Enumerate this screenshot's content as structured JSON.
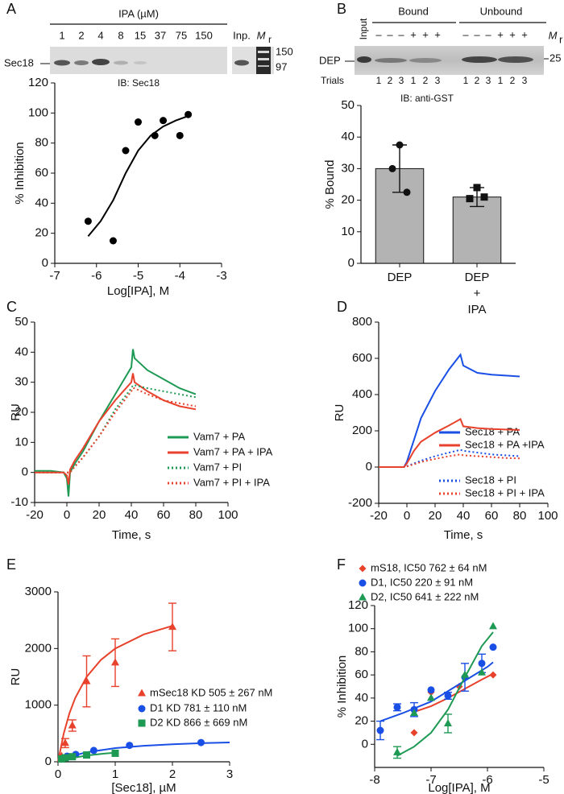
{
  "panel_labels": [
    "A",
    "B",
    "C",
    "D",
    "E",
    "F"
  ],
  "blot_a": {
    "header": "IPA (µM)",
    "lanes": [
      "1",
      "2",
      "4",
      "8",
      "15",
      "37",
      "75",
      "150",
      "Inp."
    ],
    "marker": {
      "main": "M",
      "sub": "r"
    },
    "markers": [
      "150",
      "97"
    ],
    "protein": "Sec18",
    "antibody": "IB: Sec18"
  },
  "blot_b": {
    "input": "Input",
    "groups": [
      "Bound",
      "Unbound"
    ],
    "signs": [
      "–",
      "–",
      "–",
      "+",
      "+",
      "+",
      "–",
      "–",
      "–",
      "+",
      "+",
      "+"
    ],
    "marker": {
      "main": "M",
      "sub": "r"
    },
    "marker_value": "25",
    "protein": "DEP",
    "trials_label": "Trials",
    "trials": [
      "1",
      "2",
      "3",
      "1",
      "2",
      "3",
      "1",
      "2",
      "3",
      "1",
      "2",
      "3"
    ],
    "antibody": "IB: anti-GST"
  },
  "chart_data": [
    {
      "type": "scatter",
      "xlabel": "Log[IPA], M",
      "ylabel": "% Inhibition",
      "xlim": [
        -7,
        -3
      ],
      "xticks": [
        -7,
        -6,
        -5,
        -4,
        -3
      ],
      "ylim": [
        0,
        120
      ],
      "yticks": [
        0,
        20,
        40,
        60,
        80,
        100,
        120
      ],
      "series": [
        {
          "color": "#000000",
          "marker": "circle",
          "x": [
            -6.2,
            -5.6,
            -5.3,
            -5.0,
            -4.6,
            -4.4,
            -4.0,
            -3.8
          ],
          "values": [
            28,
            15,
            75,
            94,
            85,
            95,
            85,
            99
          ],
          "fit": {
            "x": [
              -6.2,
              -5.9,
              -5.6,
              -5.3,
              -5.0,
              -4.7,
              -4.4,
              -4.1,
              -3.8
            ],
            "values": [
              18,
              28,
              42,
              60,
              75,
              85,
              91,
              95,
              98
            ]
          }
        }
      ]
    },
    {
      "type": "bar",
      "ylabel": "% Bound",
      "categories": [
        "DEP",
        "DEP\n+\nIPA"
      ],
      "values": [
        30,
        21
      ],
      "errors": [
        7.5,
        3
      ],
      "color": "#b3b3b3",
      "points": [
        [
          37.5,
          30,
          22.5
        ],
        [
          24,
          20.5,
          21
        ]
      ],
      "point_markers": [
        "circle",
        "square"
      ],
      "ylim": [
        0,
        50
      ],
      "yticks": [
        0,
        10,
        20,
        30,
        40,
        50
      ]
    },
    {
      "type": "line",
      "xlabel": "Time, s",
      "ylabel": "RU",
      "xlim": [
        -20,
        100
      ],
      "xticks": [
        -20,
        0,
        20,
        40,
        60,
        80,
        100
      ],
      "ylim": [
        -10,
        50
      ],
      "yticks": [
        -10,
        0,
        10,
        20,
        30,
        40,
        50
      ],
      "x": [
        -20,
        -10,
        -2,
        0,
        1,
        2,
        5,
        10,
        20,
        30,
        40,
        41,
        42,
        50,
        60,
        70,
        80
      ],
      "series": [
        {
          "name": "Vam7 + PA",
          "color": "#1f9a55",
          "dash": "solid",
          "values": [
            0.5,
            0.5,
            0,
            -2,
            -8,
            0,
            3,
            7,
            17,
            26,
            35,
            41,
            38,
            34,
            31,
            28,
            26
          ]
        },
        {
          "name": "Vam7 + PA + IPA",
          "color": "#e8412c",
          "dash": "solid",
          "values": [
            0,
            0,
            0,
            -1,
            -4,
            1,
            4,
            8,
            17,
            24,
            30,
            33,
            30,
            27,
            24,
            22,
            21
          ]
        },
        {
          "name": "Vam7 + PI",
          "color": "#1f9a55",
          "dash": "dotted",
          "values": [
            0,
            0,
            0,
            0,
            0,
            0,
            2,
            5,
            12,
            21,
            28,
            29,
            29,
            28,
            27,
            26,
            25
          ]
        },
        {
          "name": "Vam7 + PI + IPA",
          "color": "#e8412c",
          "dash": "dotted",
          "values": [
            0,
            0,
            0,
            0,
            0,
            0,
            2,
            5,
            12,
            20,
            27,
            28,
            28,
            26,
            24,
            23,
            22
          ]
        }
      ]
    },
    {
      "type": "line",
      "xlabel": "Time, s",
      "ylabel": "RU",
      "xlim": [
        -20,
        100
      ],
      "xticks": [
        -20,
        0,
        20,
        40,
        60,
        80,
        100
      ],
      "ylim": [
        -200,
        800
      ],
      "yticks": [
        -200,
        0,
        200,
        400,
        600,
        800
      ],
      "x": [
        -20,
        -10,
        -2,
        0,
        5,
        10,
        20,
        30,
        38,
        40,
        50,
        60,
        70,
        80
      ],
      "series": [
        {
          "name": "Sec18 + PA",
          "color": "#1a4fe6",
          "dash": "solid",
          "values": [
            0,
            0,
            0,
            30,
            150,
            270,
            420,
            540,
            620,
            560,
            520,
            510,
            505,
            500
          ]
        },
        {
          "name": "Sec18 + PA +IPA",
          "color": "#e8412c",
          "dash": "solid",
          "values": [
            0,
            0,
            0,
            20,
            90,
            140,
            190,
            230,
            265,
            225,
            215,
            210,
            207,
            205
          ]
        },
        {
          "name": "Sec18 + PI",
          "color": "#1a4fe6",
          "dash": "dotted",
          "values": [
            0,
            0,
            0,
            5,
            20,
            35,
            60,
            80,
            95,
            90,
            80,
            70,
            65,
            60
          ]
        },
        {
          "name": "Sec18 + PI + IPA",
          "color": "#e8412c",
          "dash": "dotted",
          "values": [
            0,
            0,
            0,
            3,
            15,
            28,
            45,
            60,
            70,
            65,
            60,
            55,
            50,
            48
          ]
        }
      ]
    },
    {
      "type": "scatter",
      "xlabel": "[Sec18], µM",
      "ylabel": "RU",
      "xlim": [
        0,
        3
      ],
      "xticks": [
        0,
        1,
        2,
        3
      ],
      "ylim": [
        0,
        3000
      ],
      "yticks": [
        0,
        1000,
        2000,
        3000
      ],
      "series": [
        {
          "name": "mSec18 KD 505 ± 267 nM",
          "color": "#e8412c",
          "marker": "triangle",
          "x": [
            0.0625,
            0.125,
            0.25,
            0.5,
            1,
            2
          ],
          "values": [
            100,
            330,
            640,
            1420,
            1750,
            2380
          ],
          "errors": [
            null,
            80,
            100,
            450,
            420,
            420
          ],
          "fit": {
            "x": [
              0,
              0.1,
              0.2,
              0.3,
              0.5,
              0.75,
              1,
              1.5,
              2
            ],
            "values": [
              0,
              500,
              857,
              1125,
              1500,
              1800,
              2000,
              2250,
              2400
            ]
          }
        },
        {
          "name": "D1 KD 781 ± 110 nM",
          "color": "#1a4fe6",
          "marker": "circle",
          "x": [
            0.08,
            0.16,
            0.31,
            0.625,
            1.25,
            2.5
          ],
          "values": [
            60,
            100,
            130,
            200,
            290,
            340
          ],
          "fit": {
            "x": [
              0,
              0.25,
              0.5,
              1,
              1.5,
              2,
              2.5,
              3
            ],
            "values": [
              0,
              104,
              168,
              241,
              283,
              309,
              328,
              341
            ]
          }
        },
        {
          "name": "D2 KD 866 ± 669 nM",
          "color": "#1f9a55",
          "marker": "square",
          "x": [
            0.0625,
            0.125,
            0.25,
            0.5,
            1
          ],
          "values": [
            50,
            70,
            90,
            120,
            150
          ],
          "fit": {
            "x": [
              0,
              0.25,
              0.5,
              0.75,
              1
            ],
            "values": [
              0,
              67,
              109,
              139,
              160
            ]
          }
        }
      ]
    },
    {
      "type": "scatter",
      "xlabel": "Log[IPA], M",
      "ylabel": "% Inhibition",
      "xlim": [
        -8,
        -5
      ],
      "xticks": [
        -8,
        -7,
        -6,
        -5
      ],
      "ylim": [
        -20,
        120
      ],
      "yticks": [
        0,
        20,
        40,
        60,
        80,
        100,
        120
      ],
      "series": [
        {
          "name": "mS18, IC50 762 ± 64 nM",
          "color": "#e8412c",
          "marker": "diamond",
          "x": [
            -7.3,
            -7.0,
            -6.5,
            -5.9
          ],
          "values": [
            10,
            45,
            50,
            60
          ],
          "fit": {
            "x": [
              -7.3,
              -7,
              -6.7,
              -6.4,
              -6.1,
              -5.9
            ],
            "values": [
              28,
              33,
              40,
              48,
              56,
              61
            ]
          }
        },
        {
          "name": "D1, IC50 220 ± 91 nM",
          "color": "#1a4fe6",
          "marker": "circle",
          "x": [
            -7.9,
            -7.6,
            -7.3,
            -7.0,
            -6.7,
            -6.4,
            -6.1,
            -5.9
          ],
          "values": [
            12,
            32,
            30,
            47,
            42,
            58,
            70,
            84
          ],
          "errors": [
            8,
            3,
            6,
            null,
            3,
            12,
            8,
            null
          ],
          "fit": {
            "x": [
              -7.9,
              -7.5,
              -7,
              -6.5,
              -6,
              -5.9
            ],
            "values": [
              20,
              27,
              37,
              52,
              67,
              71
            ]
          }
        },
        {
          "name": "D2, IC50 641 ± 222 nM",
          "color": "#1f9a55",
          "marker": "triangle",
          "x": [
            -7.6,
            -7.3,
            -7.0,
            -6.7,
            -6.4,
            -6.1,
            -5.9
          ],
          "values": [
            -7,
            27,
            40,
            18,
            60,
            62,
            102
          ],
          "errors": [
            5,
            null,
            null,
            8,
            null,
            null,
            null
          ],
          "fit": {
            "x": [
              -7.6,
              -7.3,
              -7,
              -6.7,
              -6.4,
              -6.1,
              -5.9
            ],
            "values": [
              -10,
              -2,
              10,
              30,
              58,
              85,
              97
            ]
          }
        }
      ]
    }
  ]
}
